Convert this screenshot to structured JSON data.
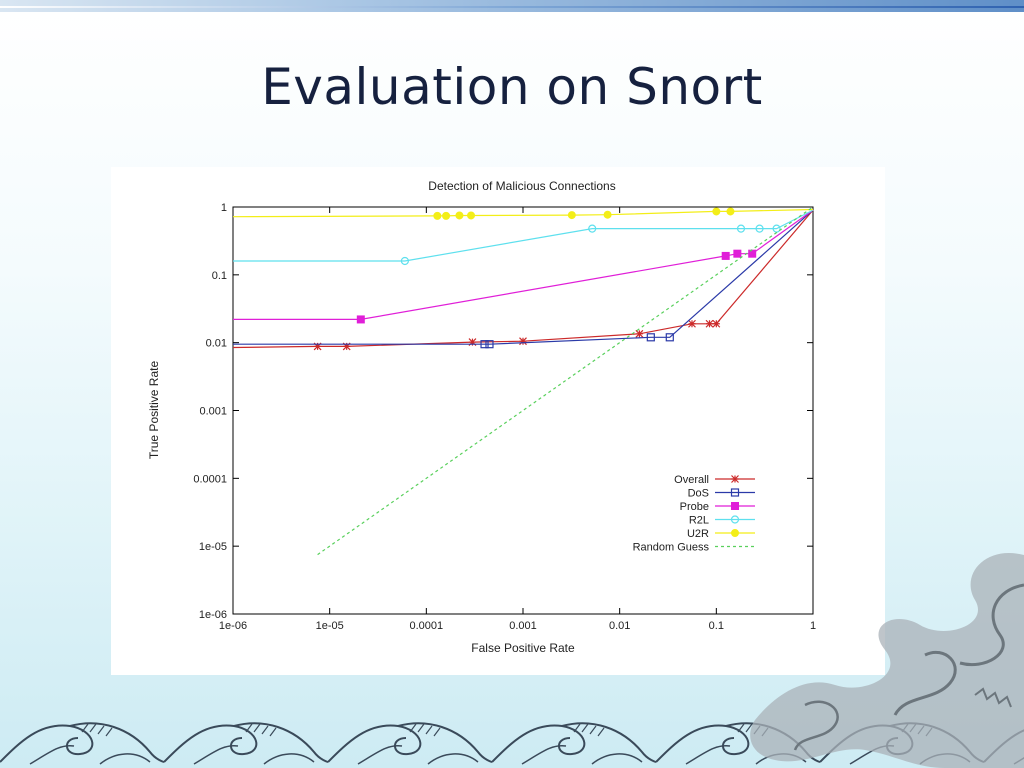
{
  "slide": {
    "title": "Evaluation on Snort"
  },
  "colors": {
    "title_text": "#16213f",
    "overall": "#cc2a2a",
    "dos": "#2b3aa8",
    "probe": "#e01fd8",
    "r2l": "#5ee0ee",
    "u2r": "#f3ee18",
    "random_guess": "#59d05c"
  },
  "chart_data": {
    "type": "line",
    "title": "Detection of Malicious Connections",
    "xlabel": "False Positive Rate",
    "ylabel": "True Positive Rate",
    "xscale": "log",
    "yscale": "log",
    "xlim": [
      1e-06,
      1
    ],
    "ylim": [
      1e-06,
      1
    ],
    "xticks": [
      {
        "value": 1e-06,
        "label": "1e-06"
      },
      {
        "value": 1e-05,
        "label": "1e-05"
      },
      {
        "value": 0.0001,
        "label": "0.0001"
      },
      {
        "value": 0.001,
        "label": "0.001"
      },
      {
        "value": 0.01,
        "label": "0.01"
      },
      {
        "value": 0.1,
        "label": "0.1"
      },
      {
        "value": 1,
        "label": "1"
      }
    ],
    "yticks": [
      {
        "value": 1e-06,
        "label": "1e-06"
      },
      {
        "value": 1e-05,
        "label": "1e-05"
      },
      {
        "value": 0.0001,
        "label": "0.0001"
      },
      {
        "value": 0.001,
        "label": "0.001"
      },
      {
        "value": 0.01,
        "label": "0.01"
      },
      {
        "value": 0.1,
        "label": "0.1"
      },
      {
        "value": 1,
        "label": "1"
      }
    ],
    "grid": false,
    "legend_position": "bottom-right",
    "series": [
      {
        "name": "Overall",
        "key": "overall",
        "marker": "star",
        "line": "solid",
        "x": [
          1e-06,
          7.5e-06,
          1.5e-05,
          0.0003,
          0.001,
          0.016,
          0.056,
          0.085,
          0.1,
          1
        ],
        "y": [
          0.0085,
          0.0088,
          0.0088,
          0.0102,
          0.0105,
          0.0135,
          0.019,
          0.019,
          0.019,
          0.9
        ]
      },
      {
        "name": "DoS",
        "key": "dos",
        "marker": "open-square",
        "line": "solid",
        "x": [
          1e-06,
          0.0004,
          0.00045,
          0.021,
          0.033,
          1
        ],
        "y": [
          0.0095,
          0.0095,
          0.0095,
          0.012,
          0.012,
          0.9
        ]
      },
      {
        "name": "Probe",
        "key": "probe",
        "marker": "filled-square",
        "line": "solid",
        "x": [
          1e-06,
          2.1e-05,
          0.125,
          0.165,
          0.235,
          1
        ],
        "y": [
          0.022,
          0.022,
          0.19,
          0.205,
          0.205,
          0.9
        ]
      },
      {
        "name": "R2L",
        "key": "r2l",
        "marker": "open-circle",
        "line": "solid",
        "x": [
          1e-06,
          6e-05,
          0.0052,
          0.18,
          0.28,
          0.42,
          1
        ],
        "y": [
          0.16,
          0.16,
          0.48,
          0.48,
          0.48,
          0.48,
          0.9
        ]
      },
      {
        "name": "U2R",
        "key": "u2r",
        "marker": "filled-circle",
        "line": "solid",
        "x": [
          1e-06,
          0.00013,
          0.00016,
          0.00022,
          0.00029,
          0.0032,
          0.0075,
          0.1,
          0.14,
          1
        ],
        "y": [
          0.72,
          0.74,
          0.74,
          0.75,
          0.75,
          0.76,
          0.77,
          0.86,
          0.86,
          0.92
        ]
      },
      {
        "name": "Random Guess",
        "key": "random_guess",
        "marker": "none",
        "line": "dashed",
        "x": [
          7.5e-06,
          1
        ],
        "y": [
          7.5e-06,
          1
        ]
      }
    ]
  }
}
